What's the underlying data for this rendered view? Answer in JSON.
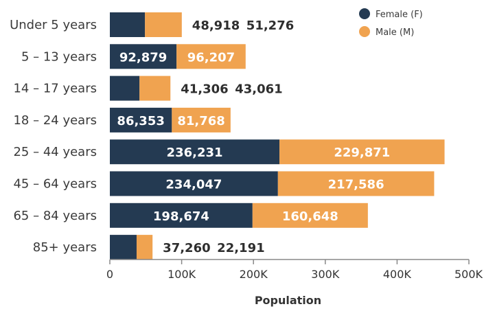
{
  "chart_data": {
    "type": "bar",
    "orientation": "horizontal",
    "stacked": true,
    "categories": [
      "Under 5 years",
      "5 – 13 years",
      "14 – 17 years",
      "18 – 24 years",
      "25 – 44 years",
      "45 – 64 years",
      "65 – 84 years",
      "85+ years"
    ],
    "series": [
      {
        "name": "Female (F)",
        "color": "#243a52",
        "values": [
          48918,
          92879,
          41306,
          86353,
          236231,
          234047,
          198674,
          37260
        ]
      },
      {
        "name": "Male (M)",
        "color": "#f0a350",
        "values": [
          51276,
          96207,
          43061,
          81768,
          229871,
          217586,
          160648,
          22191
        ]
      }
    ],
    "data_labels": [
      [
        "48,918",
        "51,276"
      ],
      [
        "92,879",
        "96,207"
      ],
      [
        "41,306",
        "43,061"
      ],
      [
        "86,353",
        "81,768"
      ],
      [
        "236,231",
        "229,871"
      ],
      [
        "234,047",
        "217,586"
      ],
      [
        "198,674",
        "160,648"
      ],
      [
        "37,260",
        "22,191"
      ]
    ],
    "xlabel": "Population",
    "ylabel": "",
    "xlim": [
      0,
      500000
    ],
    "x_ticks": [
      0,
      100000,
      200000,
      300000,
      400000,
      500000
    ],
    "x_tick_labels": [
      "0",
      "100K",
      "200K",
      "300K",
      "400K",
      "500K"
    ],
    "grid": false,
    "legend_position": "top-right"
  }
}
